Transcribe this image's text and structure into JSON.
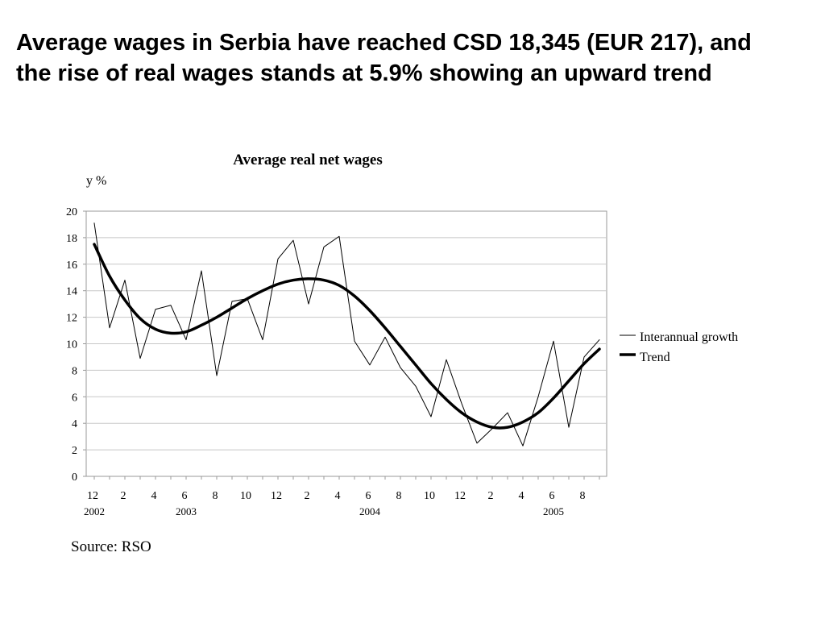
{
  "headline": "Average wages in Serbia have reached CSD 18,345 (EUR 217), and the rise of real wages stands at 5.9% showing an upward trend",
  "source": "Source: RSO",
  "chart_data": {
    "type": "line",
    "title": "Average real net wages",
    "ylabel": "y %",
    "xlabel": "",
    "ylim": [
      0,
      20
    ],
    "yticks": [
      0,
      2,
      4,
      6,
      8,
      10,
      12,
      14,
      16,
      18,
      20
    ],
    "grid": true,
    "legend_position": "right",
    "x_tick_labels": [
      "12",
      "2",
      "4",
      "6",
      "8",
      "10",
      "12",
      "2",
      "4",
      "6",
      "8",
      "10",
      "12",
      "2",
      "4",
      "6",
      "8"
    ],
    "year_labels": [
      {
        "label": "2002",
        "month_index": 0
      },
      {
        "label": "2003",
        "month_index": 6
      },
      {
        "label": "2004",
        "month_index": 18
      },
      {
        "label": "2005",
        "month_index": 30
      }
    ],
    "x_start": "2002-12",
    "series": [
      {
        "name": "Interannual growth",
        "style": "thin",
        "color": "#000000",
        "values": [
          19.1,
          11.2,
          14.8,
          8.9,
          12.6,
          12.9,
          10.3,
          15.5,
          7.6,
          13.2,
          13.4,
          10.3,
          16.4,
          17.8,
          13.0,
          17.3,
          18.1,
          10.2,
          8.4,
          10.5,
          8.2,
          6.8,
          4.5,
          8.8,
          5.5,
          2.5,
          3.6,
          4.8,
          2.3,
          6.0,
          10.2,
          3.7,
          9.0,
          10.3
        ]
      },
      {
        "name": "Trend",
        "style": "thick",
        "color": "#000000",
        "values": [
          17.5,
          15.1,
          13.3,
          11.9,
          11.1,
          10.8,
          10.9,
          11.4,
          12.0,
          12.7,
          13.4,
          14.0,
          14.5,
          14.8,
          14.9,
          14.8,
          14.4,
          13.6,
          12.5,
          11.2,
          9.8,
          8.4,
          7.0,
          5.8,
          4.8,
          4.1,
          3.7,
          3.7,
          4.1,
          4.8,
          5.9,
          7.2,
          8.5,
          9.6
        ]
      }
    ]
  }
}
